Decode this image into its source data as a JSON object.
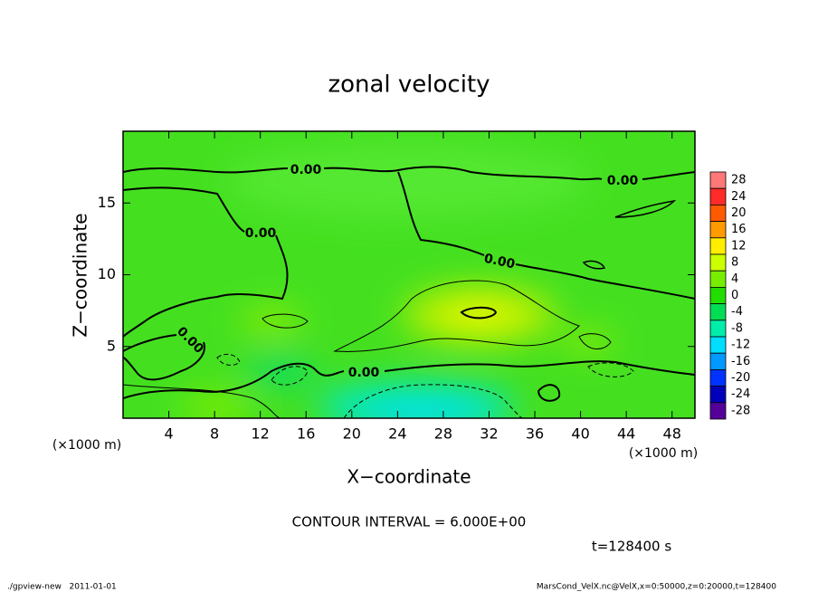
{
  "chart_data": {
    "type": "contour",
    "title": "zonal velocity",
    "xlabel": "X−coordinate",
    "ylabel": "Z−coordinate",
    "x_unit_left": "(×1000 m)",
    "x_unit_right": "(×1000 m)",
    "xlim": [
      0,
      50
    ],
    "xticks": [
      4,
      8,
      12,
      16,
      20,
      24,
      28,
      32,
      36,
      40,
      44,
      48
    ],
    "ylim": [
      0,
      20
    ],
    "yticks": [
      5,
      10,
      15
    ],
    "contour_level": {
      "value": 0,
      "label": "0.00"
    },
    "contour_interval": "CONTOUR INTERVAL = 6.000E+00",
    "time_label": "t=128400 s",
    "colorbar": {
      "ticks": [
        28,
        24,
        20,
        16,
        12,
        8,
        4,
        0,
        -4,
        -8,
        -12,
        -16,
        -20,
        -24,
        -28
      ],
      "colors": [
        "#ff7878",
        "#ff2a2a",
        "#ff5a00",
        "#ff9a00",
        "#ffee00",
        "#ccff00",
        "#77ee00",
        "#22dd00",
        "#00dd55",
        "#00eeaa",
        "#00ddff",
        "#0099ff",
        "#0033ff",
        "#0000bb",
        "#550099"
      ]
    },
    "footer_left": "./gpview-new   2011-01-01",
    "footer_right": "MarsCond_VelX.nc@VelX,x=0:50000,z=0:20000,t=128400"
  }
}
